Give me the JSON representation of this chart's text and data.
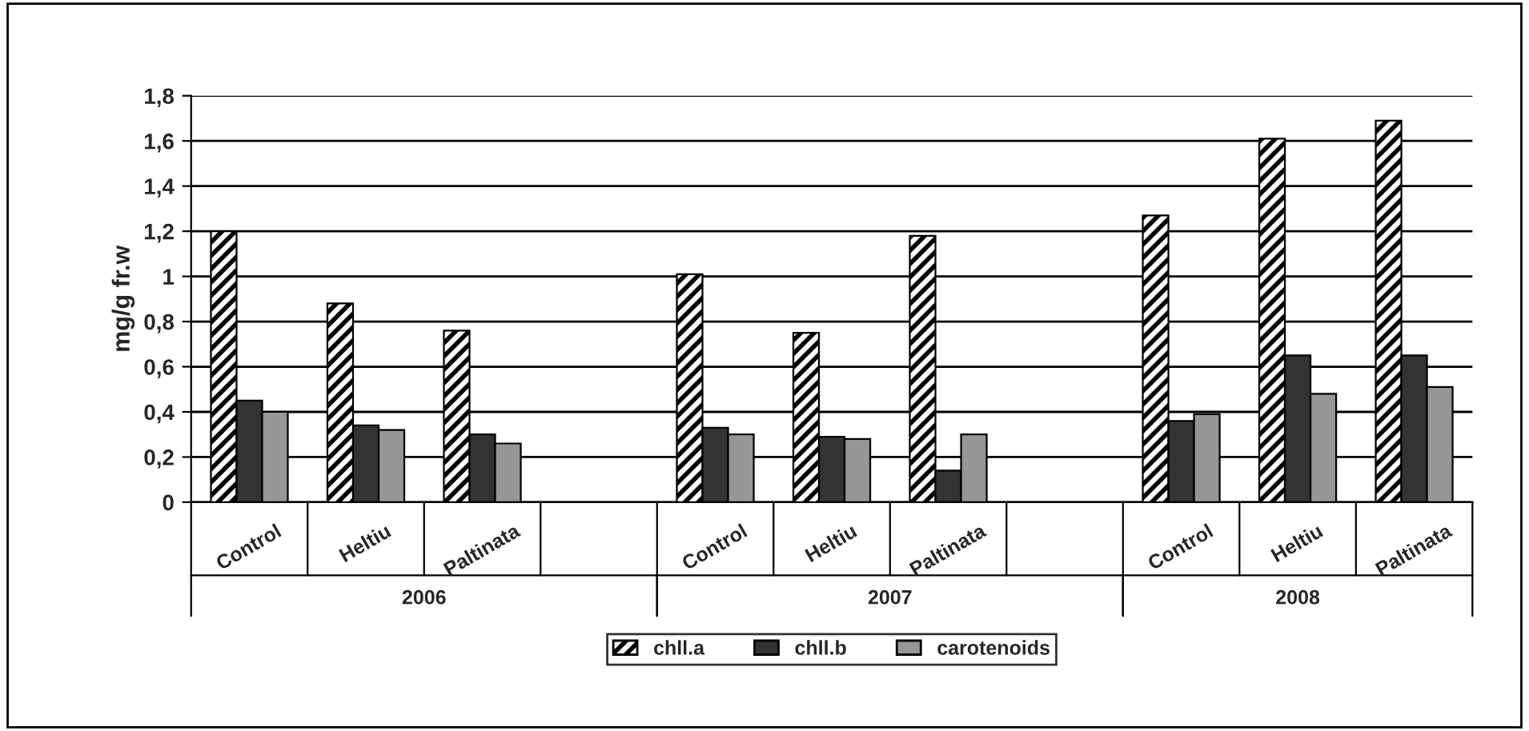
{
  "chart_data": {
    "type": "bar",
    "ylabel": "mg/g fr.w",
    "categories": [
      "Control",
      "Heltiu",
      "Paltinata",
      null,
      "Control",
      "Heltiu",
      "Paltinata",
      null,
      "Control",
      "Heltiu",
      "Paltinata"
    ],
    "series": [
      {
        "name": "chll.a",
        "color": "#000000",
        "values": [
          1.2,
          0.88,
          0.76,
          null,
          1.01,
          0.75,
          1.18,
          null,
          1.27,
          1.61,
          1.69
        ]
      },
      {
        "name": "chll.b",
        "color": "#333333",
        "values": [
          0.45,
          0.34,
          0.3,
          null,
          0.33,
          0.29,
          0.14,
          null,
          0.36,
          0.65,
          0.65
        ]
      },
      {
        "name": "carotenoids",
        "color": "#969696",
        "values": [
          0.4,
          0.32,
          0.26,
          null,
          0.3,
          0.28,
          0.3,
          null,
          0.39,
          0.48,
          0.51
        ]
      }
    ],
    "annotations": [
      "2006",
      "2007",
      "2008"
    ],
    "ylim": [
      0,
      1.8
    ],
    "yticks": [
      0,
      {
        "value": 0.2,
        "label": "0,2"
      },
      {
        "value": 0.4,
        "label": "0,4"
      },
      {
        "value": 0.6,
        "label": "0,6"
      },
      {
        "value": 0.8,
        "label": "0,8"
      },
      1,
      {
        "value": 1.2,
        "label": "1,2"
      },
      {
        "value": 1.4,
        "label": "1,4"
      },
      {
        "value": 1.6,
        "label": "1,6"
      },
      {
        "value": 1.8,
        "label": "1,8"
      }
    ],
    "grid": "y",
    "legend": "bottom"
  }
}
